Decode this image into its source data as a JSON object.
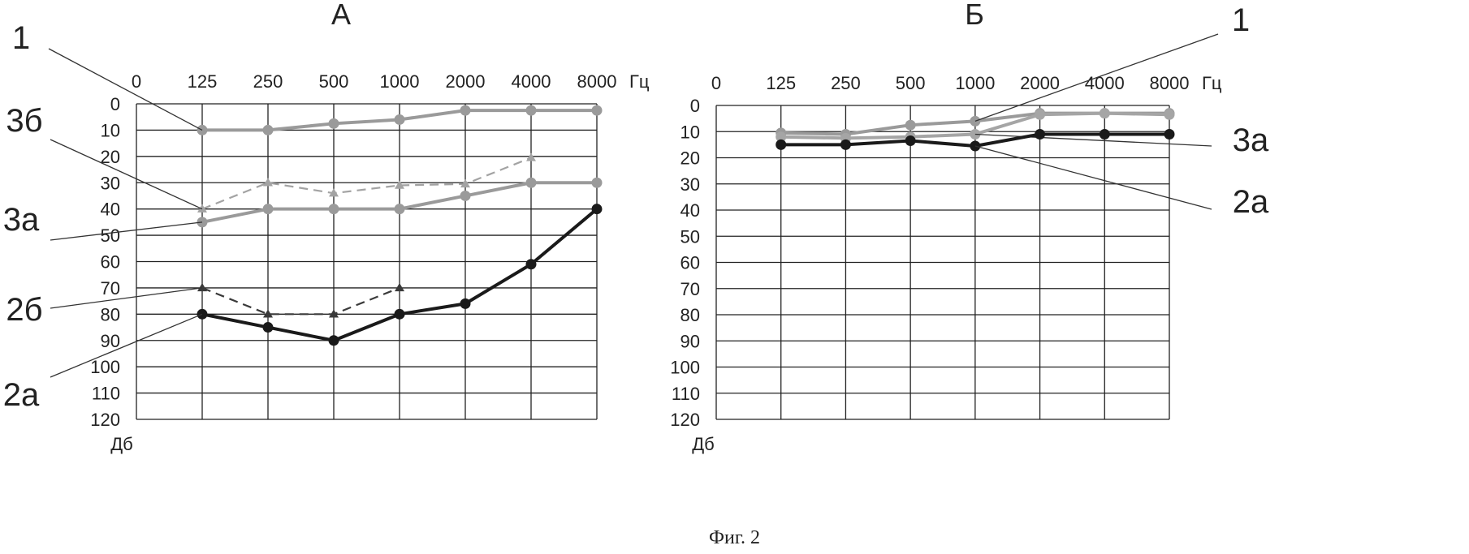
{
  "caption": "Фиг. 2",
  "chart_data": [
    {
      "type": "line",
      "title": "А",
      "x": [
        "0",
        "125",
        "250",
        "500",
        "1000",
        "2000",
        "4000",
        "8000"
      ],
      "x_unit": "Гц",
      "y_ticks": [
        0,
        10,
        20,
        30,
        40,
        50,
        60,
        70,
        80,
        90,
        100,
        110,
        120
      ],
      "y_unit": "Дб",
      "ylim": [
        0,
        120
      ],
      "y_inverted": true,
      "grid": true,
      "series": [
        {
          "name": "1",
          "style": "solid",
          "marker": "circle",
          "color": "#9a9a9a",
          "x": [
            "125",
            "250",
            "500",
            "1000",
            "2000",
            "4000",
            "8000"
          ],
          "values": [
            10,
            10,
            7.5,
            6,
            2.5,
            2.5,
            2.5
          ]
        },
        {
          "name": "3б",
          "style": "dashed",
          "marker": "triangle",
          "color": "#a3a3a3",
          "x": [
            "125",
            "250",
            "500",
            "1000",
            "2000",
            "4000"
          ],
          "values": [
            40,
            30,
            34,
            31,
            30.5,
            20.5
          ]
        },
        {
          "name": "3а",
          "style": "solid",
          "marker": "circle",
          "color": "#9a9a9a",
          "x": [
            "125",
            "250",
            "500",
            "1000",
            "2000",
            "4000",
            "8000"
          ],
          "values": [
            45,
            40,
            40,
            40,
            35,
            30,
            30
          ]
        },
        {
          "name": "2б",
          "style": "dashed",
          "marker": "triangle",
          "color": "#3a3a3a",
          "x": [
            "125",
            "250",
            "500",
            "1000"
          ],
          "values": [
            70,
            80,
            80,
            70
          ]
        },
        {
          "name": "2а",
          "style": "solid",
          "marker": "circle",
          "color": "#1a1a1a",
          "x": [
            "125",
            "250",
            "500",
            "1000",
            "2000",
            "4000",
            "8000"
          ],
          "values": [
            80,
            85,
            90,
            80,
            76,
            61,
            40
          ]
        }
      ]
    },
    {
      "type": "line",
      "title": "Б",
      "x": [
        "0",
        "125",
        "250",
        "500",
        "1000",
        "2000",
        "4000",
        "8000"
      ],
      "x_unit": "Гц",
      "y_ticks": [
        0,
        10,
        20,
        30,
        40,
        50,
        60,
        70,
        80,
        90,
        100,
        110,
        120
      ],
      "y_unit": "Дб",
      "ylim": [
        0,
        120
      ],
      "y_inverted": true,
      "grid": true,
      "series": [
        {
          "name": "1",
          "style": "solid",
          "marker": "circle",
          "color": "#9a9a9a",
          "x": [
            "125",
            "250",
            "500",
            "1000",
            "2000",
            "4000",
            "8000"
          ],
          "values": [
            10.5,
            11,
            7.5,
            6,
            3,
            3,
            3
          ]
        },
        {
          "name": "3а",
          "style": "solid",
          "marker": "circle",
          "color": "#a5a5a5",
          "x": [
            "125",
            "250",
            "500",
            "1000",
            "2000",
            "4000",
            "8000"
          ],
          "values": [
            12,
            12.5,
            12,
            11,
            3.5,
            3,
            3.5
          ]
        },
        {
          "name": "2а",
          "style": "solid",
          "marker": "circle",
          "color": "#1a1a1a",
          "x": [
            "125",
            "250",
            "500",
            "1000",
            "2000",
            "4000",
            "8000"
          ],
          "values": [
            15,
            15,
            13.5,
            15.5,
            11,
            11,
            11
          ]
        }
      ]
    }
  ]
}
